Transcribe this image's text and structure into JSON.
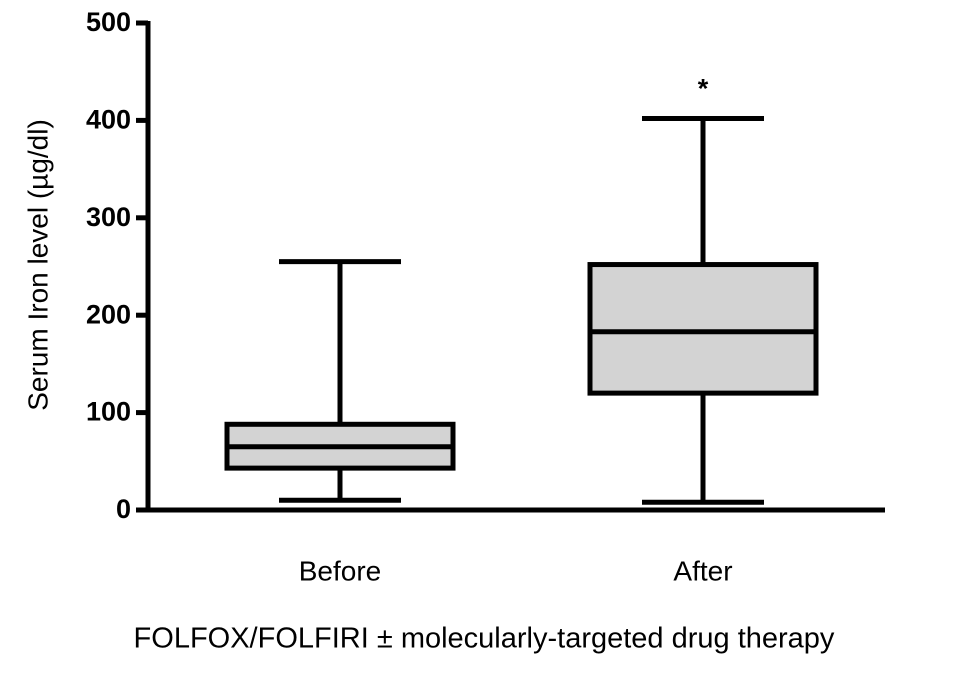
{
  "chart_data": {
    "type": "box",
    "x_label": "FOLFOX/FOLFIRI ± molecularly-targeted drug therapy",
    "y_label": "Serum Iron level (µg/dl)",
    "categories": [
      "Before",
      "After"
    ],
    "min": [
      10,
      8
    ],
    "q1": [
      43,
      120
    ],
    "median": [
      65,
      183
    ],
    "q3": [
      88,
      252
    ],
    "max": [
      255,
      402
    ],
    "color": "#d3d3d3",
    "ylim": [
      0,
      500
    ],
    "yticks": [
      0,
      100,
      200,
      300,
      400,
      500
    ],
    "annotations": [
      {
        "text": "*",
        "category": "After"
      }
    ]
  }
}
